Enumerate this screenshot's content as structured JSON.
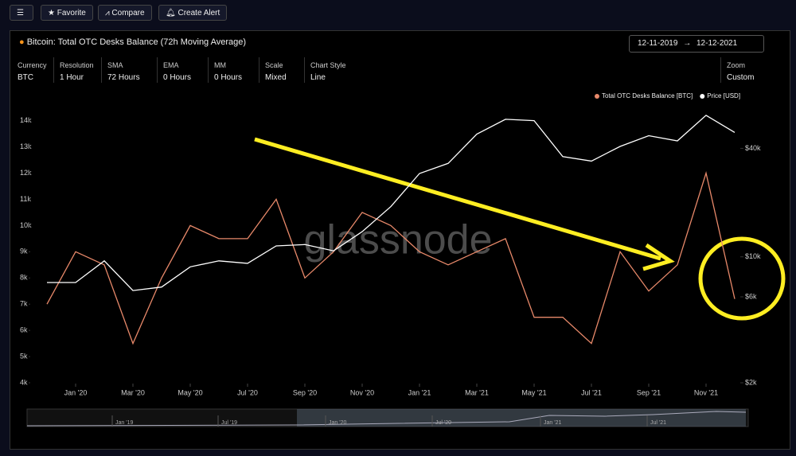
{
  "toolbar": {
    "favorite": "Favorite",
    "compare": "Compare",
    "create_alert": "Create Alert"
  },
  "panel": {
    "title": "Bitcoin: Total OTC Desks Balance (72h Moving Average)",
    "date_from": "12-11-2019",
    "date_to": "12-12-2021",
    "controls": [
      {
        "label": "Currency",
        "value": "BTC"
      },
      {
        "label": "Resolution",
        "value": "1 Hour"
      },
      {
        "label": "SMA",
        "value": "72 Hours"
      },
      {
        "label": "EMA",
        "value": "0 Hours"
      },
      {
        "label": "MM",
        "value": "0 Hours"
      },
      {
        "label": "Scale",
        "value": "Mixed"
      },
      {
        "label": "Chart Style",
        "value": "Line"
      },
      {
        "label": "Zoom",
        "value": "Custom"
      }
    ]
  },
  "watermark": "glassnode",
  "chart_data": {
    "type": "line",
    "x": [
      "2019-12",
      "2020-01",
      "2020-02",
      "2020-03",
      "2020-04",
      "2020-05",
      "2020-06",
      "2020-07",
      "2020-08",
      "2020-09",
      "2020-10",
      "2020-11",
      "2020-12",
      "2021-01",
      "2021-02",
      "2021-03",
      "2021-04",
      "2021-05",
      "2021-06",
      "2021-07",
      "2021-08",
      "2021-09",
      "2021-10",
      "2021-11",
      "2021-12"
    ],
    "xlim": [
      "2019-12",
      "2021-12"
    ],
    "xticks": [
      {
        "value": "2020-01",
        "label": "Jan '20"
      },
      {
        "value": "2020-03",
        "label": "Mar '20"
      },
      {
        "value": "2020-05",
        "label": "May '20"
      },
      {
        "value": "2020-07",
        "label": "Jul '20"
      },
      {
        "value": "2020-09",
        "label": "Sep '20"
      },
      {
        "value": "2020-11",
        "label": "Nov '20"
      },
      {
        "value": "2021-01",
        "label": "Jan '21"
      },
      {
        "value": "2021-03",
        "label": "Mar '21"
      },
      {
        "value": "2021-05",
        "label": "May '21"
      },
      {
        "value": "2021-07",
        "label": "Jul '21"
      },
      {
        "value": "2021-09",
        "label": "Sep '21"
      },
      {
        "value": "2021-11",
        "label": "Nov '21"
      }
    ],
    "ylim": [
      4000,
      14900
    ],
    "yticks": [
      {
        "value": 4000,
        "label": "4k"
      },
      {
        "value": 5000,
        "label": "5k"
      },
      {
        "value": 6000,
        "label": "6k"
      },
      {
        "value": 7000,
        "label": "7k"
      },
      {
        "value": 8000,
        "label": "8k"
      },
      {
        "value": 9000,
        "label": "9k"
      },
      {
        "value": 10000,
        "label": "10k"
      },
      {
        "value": 11000,
        "label": "11k"
      },
      {
        "value": 12000,
        "label": "12k"
      },
      {
        "value": 13000,
        "label": "13k"
      },
      {
        "value": 14000,
        "label": "14k"
      }
    ],
    "y2lim": [
      2000,
      77000
    ],
    "y2log": true,
    "y2ticks": [
      {
        "value": 2000,
        "label": "$2k"
      },
      {
        "value": 6000,
        "label": "$6k"
      },
      {
        "value": 10000,
        "label": "$10k"
      },
      {
        "value": 40000,
        "label": "$40k"
      }
    ],
    "series": [
      {
        "name": "Total OTC Desks Balance [BTC]",
        "color": "#e8896a",
        "values": [
          7000,
          9000,
          8500,
          5500,
          8000,
          10000,
          9500,
          9500,
          11000,
          8000,
          9000,
          10500,
          10000,
          9000,
          8500,
          9000,
          9500,
          6500,
          6500,
          5500,
          9000,
          7500,
          8500,
          12000,
          7200
        ]
      },
      {
        "name": "Price [USD]",
        "color": "#ffffff",
        "axis": "y2",
        "values": [
          7200,
          7200,
          9500,
          6500,
          6800,
          8800,
          9500,
          9200,
          11500,
          11700,
          10800,
          13800,
          19000,
          29000,
          33000,
          48000,
          58000,
          57000,
          36000,
          34000,
          41000,
          47000,
          44000,
          61000,
          49000
        ]
      }
    ]
  },
  "navigator": {
    "labels": [
      "Jan '19",
      "Jul '19",
      "Jan '20",
      "Jul '20",
      "Jan '21",
      "Jul '21"
    ]
  }
}
